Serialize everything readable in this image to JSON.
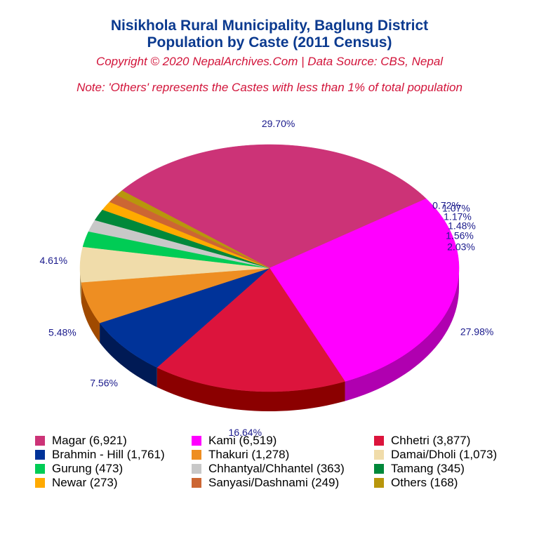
{
  "header": {
    "title_line1": "Nisikhola Rural Municipality, Baglung District",
    "title_line2": "Population by Caste (2011 Census)",
    "copyright": "Copyright © 2020 NepalArchives.Com | Data Source: CBS, Nepal",
    "note": "Note: 'Others' represents the Castes with less than 1% of total population"
  },
  "chart_data": {
    "type": "pie",
    "style": "3d",
    "legend_position": "bottom",
    "slices": [
      {
        "name": "Magar",
        "value": 6921,
        "percent": 29.7,
        "label": "29.70%",
        "legend": "Magar (6,921)",
        "color": "#cc3377",
        "side": "#8e1f52"
      },
      {
        "name": "Kami",
        "value": 6519,
        "percent": 27.98,
        "label": "27.98%",
        "legend": "Kami (6,519)",
        "color": "#ff00ff",
        "side": "#b000b0"
      },
      {
        "name": "Chhetri",
        "value": 3877,
        "percent": 16.64,
        "label": "16.64%",
        "legend": "Chhetri (3,877)",
        "color": "#dc143c",
        "side": "#8b0000"
      },
      {
        "name": "Brahmin - Hill",
        "value": 1761,
        "percent": 7.56,
        "label": "7.56%",
        "legend": "Brahmin - Hill (1,761)",
        "color": "#003399",
        "side": "#001a55"
      },
      {
        "name": "Thakuri",
        "value": 1278,
        "percent": 5.48,
        "label": "5.48%",
        "legend": "Thakuri (1,278)",
        "color": "#ee8e22",
        "side": "#a04a00"
      },
      {
        "name": "Damai/Dholi",
        "value": 1073,
        "percent": 4.61,
        "label": "4.61%",
        "legend": "Damai/Dholi (1,073)",
        "color": "#f0dcaa",
        "side": "#b09a6a"
      },
      {
        "name": "Gurung",
        "value": 473,
        "percent": 2.03,
        "label": "2.03%",
        "legend": "Gurung (473)",
        "color": "#00cc55",
        "side": "#008033"
      },
      {
        "name": "Chhantyal/Chhantel",
        "value": 363,
        "percent": 1.56,
        "label": "1.56%",
        "legend": "Chhantyal/Chhantel (363)",
        "color": "#c8c8c8",
        "side": "#888888"
      },
      {
        "name": "Tamang",
        "value": 345,
        "percent": 1.48,
        "label": "1.48%",
        "legend": "Tamang (345)",
        "color": "#00883a",
        "side": "#005022"
      },
      {
        "name": "Newar",
        "value": 273,
        "percent": 1.17,
        "label": "1.17%",
        "legend": "Newar (273)",
        "color": "#ffaa00",
        "side": "#b07000"
      },
      {
        "name": "Sanyasi/Dashnami",
        "value": 249,
        "percent": 1.07,
        "label": "1.07%",
        "legend": "Sanyasi/Dashnami (249)",
        "color": "#cc6633",
        "side": "#8a3d15"
      },
      {
        "name": "Others",
        "value": 168,
        "percent": 0.72,
        "label": "0.72%",
        "legend": "Others (168)",
        "color": "#b8960c",
        "side": "#7a6306"
      }
    ]
  }
}
